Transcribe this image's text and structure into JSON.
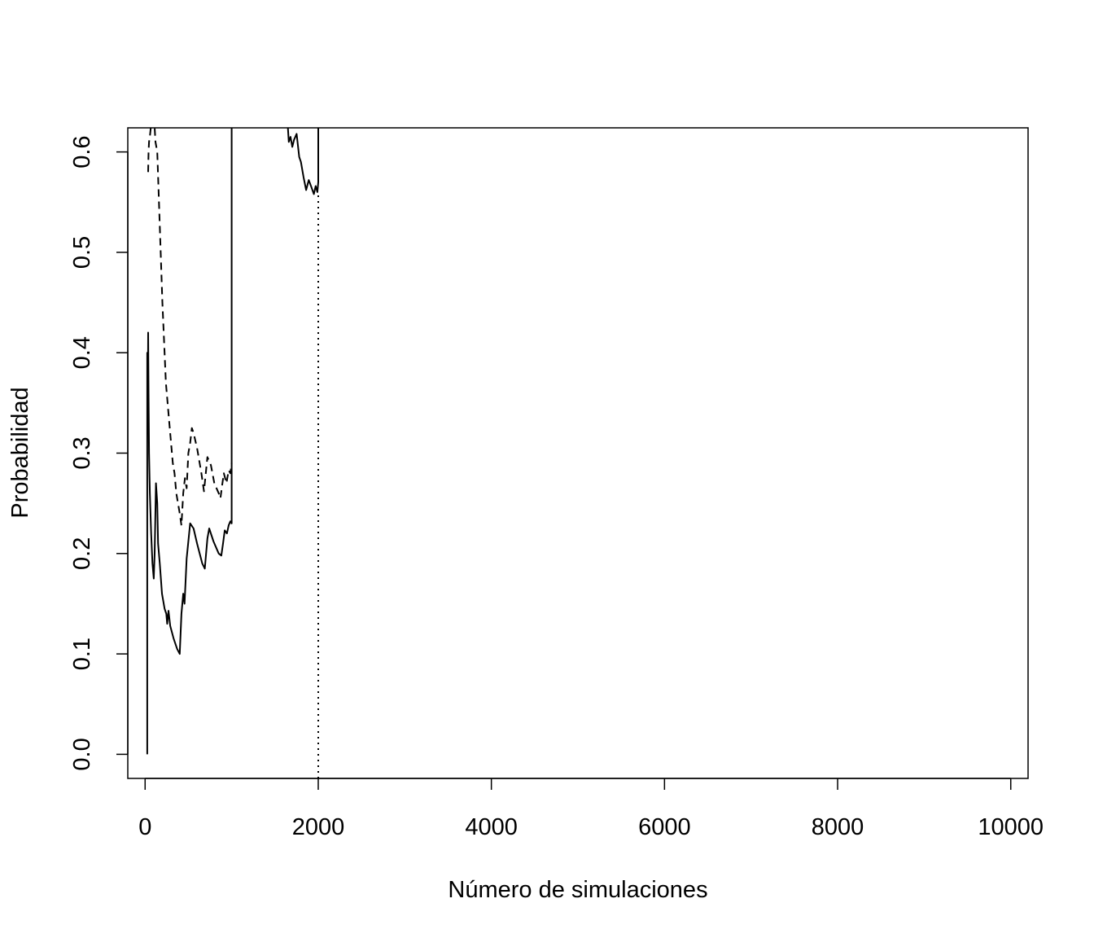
{
  "chart_data": {
    "type": "line",
    "title": "",
    "xlabel": "Número de simulaciones",
    "ylabel": "Probabilidad",
    "xlim": [
      -200,
      10200
    ],
    "ylim": [
      -0.024,
      0.624
    ],
    "x_ticks": [
      0,
      2000,
      4000,
      6000,
      8000,
      10000
    ],
    "x_tick_labels": [
      "0",
      "2000",
      "4000",
      "6000",
      "8000",
      "10000"
    ],
    "y_ticks": [
      0.0,
      0.1,
      0.2,
      0.3,
      0.4,
      0.5,
      0.6
    ],
    "y_tick_labels": [
      "0.0",
      "0.1",
      "0.2",
      "0.3",
      "0.4",
      "0.5",
      "0.6"
    ],
    "grid": false,
    "legend": "none",
    "series": [
      {
        "style": "solid",
        "color": "#000000",
        "points": [
          [
            25,
            0.0
          ],
          [
            25,
            0.4
          ],
          [
            30,
            0.32
          ],
          [
            35,
            0.42
          ],
          [
            40,
            0.36
          ],
          [
            45,
            0.3
          ],
          [
            55,
            0.26
          ],
          [
            70,
            0.22
          ],
          [
            85,
            0.19
          ],
          [
            100,
            0.175
          ],
          [
            110,
            0.2
          ],
          [
            125,
            0.27
          ],
          [
            140,
            0.25
          ],
          [
            150,
            0.21
          ],
          [
            170,
            0.19
          ],
          [
            195,
            0.16
          ],
          [
            225,
            0.145
          ],
          [
            245,
            0.14
          ],
          [
            255,
            0.13
          ],
          [
            270,
            0.143
          ],
          [
            290,
            0.128
          ],
          [
            330,
            0.115
          ],
          [
            370,
            0.105
          ],
          [
            400,
            0.1
          ],
          [
            420,
            0.14
          ],
          [
            440,
            0.16
          ],
          [
            455,
            0.15
          ],
          [
            480,
            0.195
          ],
          [
            520,
            0.23
          ],
          [
            560,
            0.225
          ],
          [
            600,
            0.21
          ],
          [
            660,
            0.19
          ],
          [
            690,
            0.185
          ],
          [
            720,
            0.215
          ],
          [
            740,
            0.225
          ],
          [
            790,
            0.212
          ],
          [
            850,
            0.2
          ],
          [
            880,
            0.198
          ],
          [
            900,
            0.21
          ],
          [
            920,
            0.223
          ],
          [
            945,
            0.22
          ],
          [
            965,
            0.228
          ],
          [
            985,
            0.232
          ],
          [
            1000,
            0.23
          ],
          [
            1000,
            0.624
          ]
        ],
        "continuation": [
          [
            1650,
            0.624
          ],
          [
            1660,
            0.61
          ],
          [
            1680,
            0.615
          ],
          [
            1700,
            0.605
          ],
          [
            1720,
            0.612
          ],
          [
            1750,
            0.618
          ],
          [
            1780,
            0.595
          ],
          [
            1800,
            0.59
          ],
          [
            1830,
            0.575
          ],
          [
            1860,
            0.562
          ],
          [
            1890,
            0.572
          ],
          [
            1920,
            0.565
          ],
          [
            1950,
            0.558
          ],
          [
            1970,
            0.566
          ],
          [
            1990,
            0.56
          ],
          [
            2000,
            0.57
          ],
          [
            2000,
            0.624
          ]
        ]
      },
      {
        "style": "dashed",
        "color": "#000000",
        "points": [
          [
            35,
            0.58
          ],
          [
            40,
            0.6
          ],
          [
            45,
            0.61
          ],
          [
            55,
            0.615
          ],
          [
            65,
            0.624
          ],
          [
            110,
            0.624
          ],
          [
            120,
            0.61
          ],
          [
            140,
            0.6
          ],
          [
            160,
            0.55
          ],
          [
            200,
            0.45
          ],
          [
            240,
            0.37
          ],
          [
            280,
            0.33
          ],
          [
            320,
            0.29
          ],
          [
            340,
            0.28
          ],
          [
            360,
            0.26
          ],
          [
            380,
            0.25
          ],
          [
            400,
            0.24
          ],
          [
            420,
            0.228
          ],
          [
            440,
            0.26
          ],
          [
            460,
            0.275
          ],
          [
            480,
            0.265
          ],
          [
            500,
            0.3
          ],
          [
            520,
            0.31
          ],
          [
            540,
            0.325
          ],
          [
            560,
            0.32
          ],
          [
            600,
            0.305
          ],
          [
            650,
            0.28
          ],
          [
            680,
            0.262
          ],
          [
            720,
            0.296
          ],
          [
            760,
            0.288
          ],
          [
            800,
            0.27
          ],
          [
            850,
            0.26
          ],
          [
            870,
            0.255
          ],
          [
            890,
            0.268
          ],
          [
            910,
            0.28
          ],
          [
            940,
            0.27
          ],
          [
            965,
            0.283
          ],
          [
            985,
            0.28
          ],
          [
            1000,
            0.29
          ]
        ]
      },
      {
        "style": "dotted",
        "color": "#000000",
        "points": [
          [
            2000,
            -0.024
          ],
          [
            2000,
            0.56
          ]
        ]
      }
    ]
  }
}
